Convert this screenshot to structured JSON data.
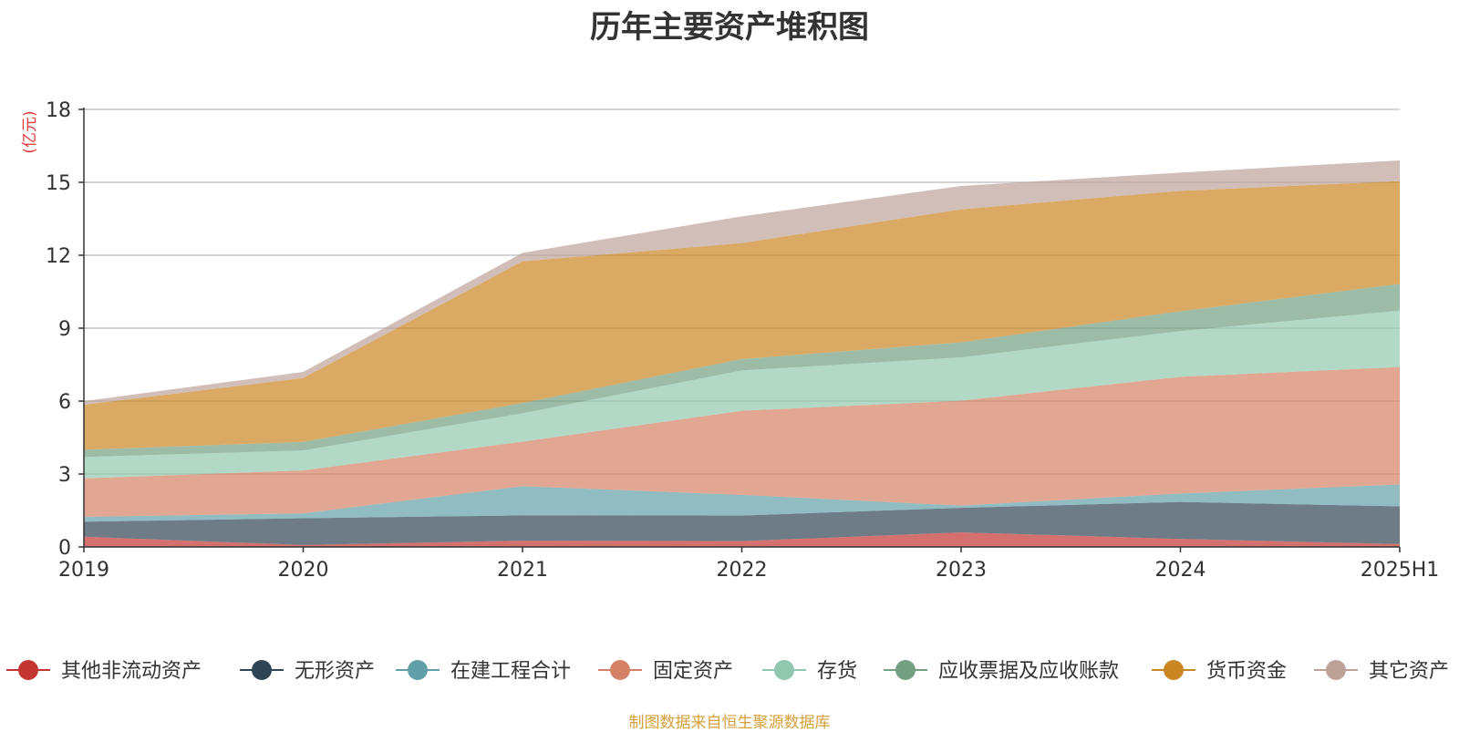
{
  "chart_data": {
    "type": "area",
    "stacked": true,
    "title": "历年主要资产堆积图",
    "y_unit_label": "(亿元)",
    "x": [
      "2019",
      "2020",
      "2021",
      "2022",
      "2023",
      "2024",
      "2025H1"
    ],
    "ylim": [
      0,
      18
    ],
    "yticks": [
      0,
      3,
      6,
      9,
      12,
      15,
      18
    ],
    "grid": true,
    "legend_position": "bottom",
    "series": [
      {
        "name": "其他非流动资产",
        "color": "#c23531",
        "values": [
          0.42,
          0.08,
          0.26,
          0.24,
          0.6,
          0.33,
          0.12
        ]
      },
      {
        "name": "无形资产",
        "color": "#2f4554",
        "values": [
          0.62,
          1.1,
          1.04,
          1.05,
          1.01,
          1.52,
          1.55
        ]
      },
      {
        "name": "在建工程合计",
        "color": "#61a0a8",
        "values": [
          0.2,
          0.2,
          1.2,
          0.85,
          0.09,
          0.35,
          0.9
        ]
      },
      {
        "name": "固定资产",
        "color": "#d48265",
        "values": [
          1.58,
          1.77,
          1.83,
          3.46,
          4.32,
          4.8,
          4.83
        ]
      },
      {
        "name": "存货",
        "color": "#91c7ae",
        "values": [
          0.88,
          0.82,
          1.17,
          1.66,
          1.78,
          1.88,
          2.32
        ]
      },
      {
        "name": "应收票据及应收账款",
        "color": "#749f83",
        "values": [
          0.3,
          0.35,
          0.42,
          0.47,
          0.62,
          0.82,
          1.1
        ]
      },
      {
        "name": "货币资金",
        "color": "#ca8622",
        "values": [
          1.85,
          2.63,
          5.83,
          4.77,
          5.47,
          4.95,
          4.23
        ]
      },
      {
        "name": "其它资产",
        "color": "#bda29a",
        "values": [
          0.15,
          0.25,
          0.35,
          1.1,
          0.96,
          0.75,
          0.85
        ]
      }
    ]
  },
  "source_note": "制图数据来自恒生聚源数据库"
}
